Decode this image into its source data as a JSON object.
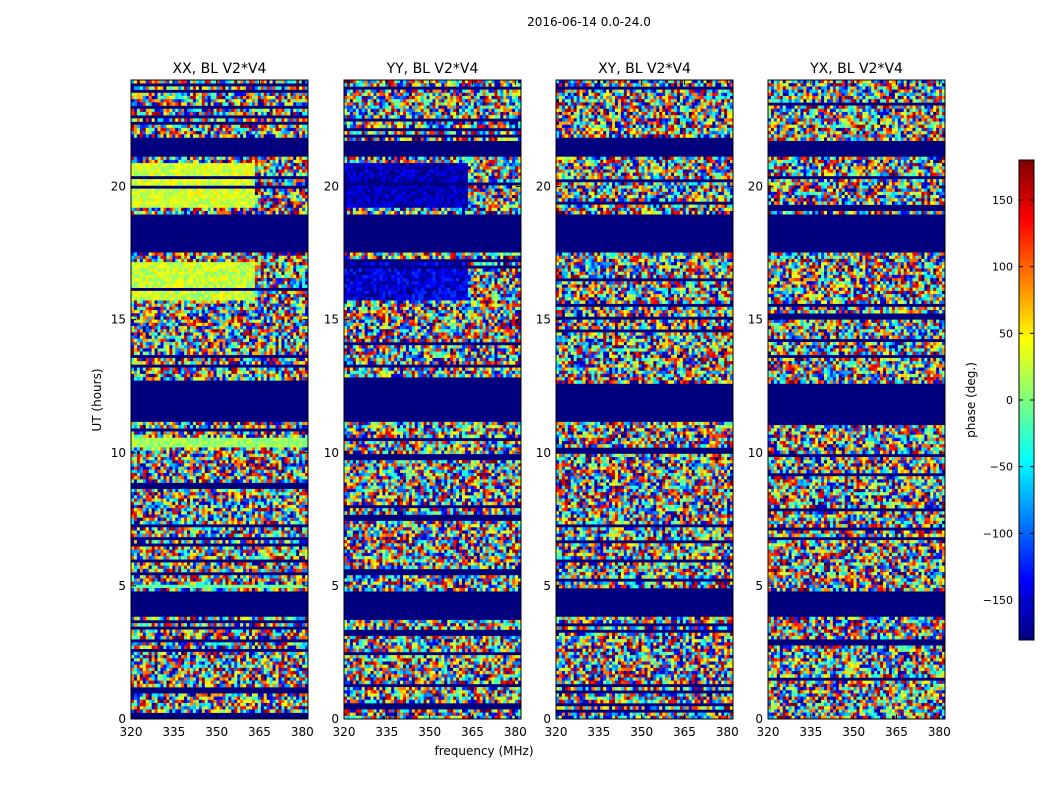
{
  "figure": {
    "suptitle": "2016-06-14 0.0-24.0"
  },
  "chart_data": {
    "type": "heatmap",
    "suptitle": "2016-06-14 0.0-24.0",
    "xlabel": "frequency (MHz)",
    "ylabel": "UT (hours)",
    "xlim": [
      320,
      382
    ],
    "ylim": [
      0,
      24
    ],
    "xticks": [
      320,
      335,
      350,
      365,
      380
    ],
    "yticks": [
      0,
      5,
      10,
      15,
      20
    ],
    "colorbar": {
      "label": "phase (deg.)",
      "range": [
        -180,
        180
      ],
      "ticks": [
        150,
        100,
        50,
        0,
        -50,
        -100,
        -150
      ],
      "tick_labels": [
        "150",
        "100",
        "50",
        "0",
        "−50",
        "−100",
        "−150"
      ],
      "colormap": "jet",
      "stops": [
        "#00007f",
        "#0000ff",
        "#007fff",
        "#00ffff",
        "#7fff7f",
        "#ffff00",
        "#ff7f00",
        "#ff0000",
        "#7f0000"
      ]
    },
    "flagged_color": "#00007f",
    "panels": [
      {
        "title": "XX, BL V2*V4",
        "flagged_ut": [
          [
            3.8,
            4.8
          ],
          [
            11.2,
            12.6
          ],
          [
            17.5,
            19.0
          ],
          [
            21.1,
            21.7
          ]
        ],
        "structured_regions": [
          {
            "ut": [
              15.7,
              17.1
            ],
            "freq": [
              320,
              363
            ],
            "phase_mean": 25,
            "phase_spread": 30
          },
          {
            "ut": [
              19.2,
              20.9
            ],
            "freq": [
              320,
              363
            ],
            "phase_mean": 30,
            "phase_spread": 25
          },
          {
            "ut": [
              10.2,
              10.5
            ],
            "freq": [
              320,
              382
            ],
            "phase_mean": 10,
            "phase_spread": 20
          },
          {
            "ut": [
              4.9,
              5.1
            ],
            "freq": [
              320,
              382
            ],
            "phase_mean": -10,
            "phase_spread": 20
          }
        ]
      },
      {
        "title": "YY, BL V2*V4",
        "flagged_ut": [
          [
            3.8,
            4.8
          ],
          [
            11.2,
            12.6
          ],
          [
            17.5,
            19.0
          ],
          [
            21.1,
            21.7
          ]
        ],
        "structured_regions": [
          {
            "ut": [
              15.7,
              17.1
            ],
            "freq": [
              320,
              363
            ],
            "phase_mean": -150,
            "phase_spread": 35
          },
          {
            "ut": [
              19.2,
              20.9
            ],
            "freq": [
              320,
              363
            ],
            "phase_mean": -160,
            "phase_spread": 30
          }
        ]
      },
      {
        "title": "XY, BL V2*V4",
        "flagged_ut": [
          [
            3.8,
            4.8
          ],
          [
            11.2,
            12.6
          ],
          [
            17.5,
            19.0
          ],
          [
            21.1,
            21.7
          ]
        ],
        "structured_regions": []
      },
      {
        "title": "YX, BL V2*V4",
        "flagged_ut": [
          [
            3.8,
            4.8
          ],
          [
            11.2,
            12.6
          ],
          [
            17.5,
            19.0
          ],
          [
            21.1,
            21.7
          ]
        ],
        "structured_regions": []
      }
    ]
  }
}
